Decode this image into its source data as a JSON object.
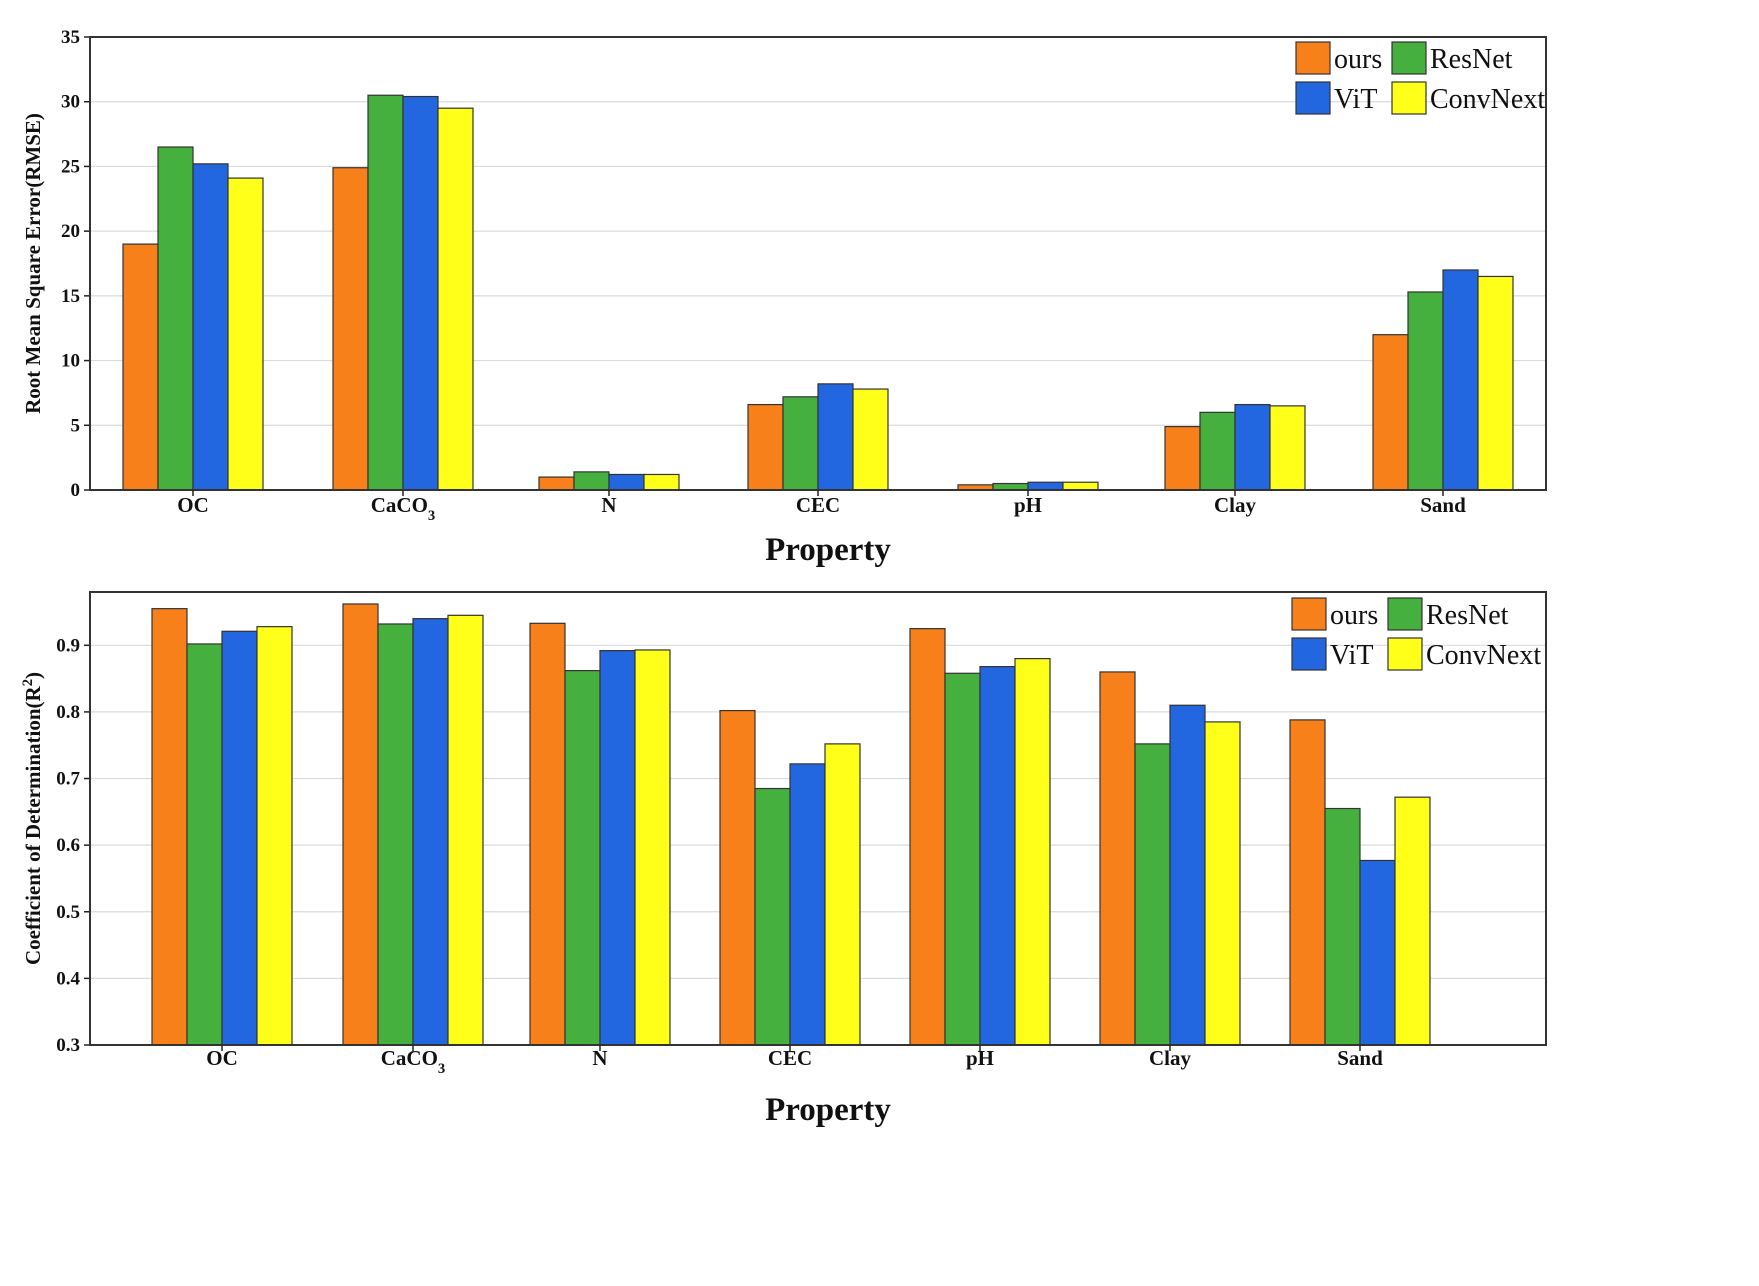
{
  "chart_data": [
    {
      "type": "bar",
      "xlabel": "Property",
      "ylabel": "Root Mean Square Error(RMSE)",
      "categories": [
        "OC",
        "CaCO3",
        "N",
        "CEC",
        "pH",
        "Clay",
        "Sand"
      ],
      "yticks": [
        "0",
        "5",
        "10",
        "15",
        "20",
        "25",
        "30",
        "35"
      ],
      "ylim": [
        0,
        35
      ],
      "grid": true,
      "legend_position": "top-right",
      "series": [
        {
          "name": "ours",
          "color": "#F8801A",
          "values": [
            19.0,
            24.9,
            1.0,
            6.6,
            0.4,
            4.9,
            12.0
          ]
        },
        {
          "name": "ResNet",
          "color": "#46B03F",
          "values": [
            26.5,
            30.5,
            1.4,
            7.2,
            0.5,
            6.0,
            15.3
          ]
        },
        {
          "name": "ViT",
          "color": "#2266E0",
          "values": [
            25.2,
            30.4,
            1.2,
            8.2,
            0.6,
            6.6,
            17.0
          ]
        },
        {
          "name": "ConvNext",
          "color": "#FFFF1A",
          "values": [
            24.1,
            29.5,
            1.2,
            7.8,
            0.6,
            6.5,
            16.5
          ]
        }
      ]
    },
    {
      "type": "bar",
      "xlabel": "Property",
      "ylabel": "Coefficient of Determination(R2)",
      "categories": [
        "OC",
        "CaCO3",
        "N",
        "CEC",
        "pH",
        "Clay",
        "Sand"
      ],
      "yticks": [
        "0.3",
        "0.4",
        "0.5",
        "0.6",
        "0.7",
        "0.8",
        "0.9"
      ],
      "ylim": [
        0.3,
        0.98
      ],
      "grid": true,
      "legend_position": "top-right",
      "series": [
        {
          "name": "ours",
          "color": "#F8801A",
          "values": [
            0.955,
            0.962,
            0.933,
            0.802,
            0.925,
            0.86,
            0.788
          ]
        },
        {
          "name": "ResNet",
          "color": "#46B03F",
          "values": [
            0.902,
            0.932,
            0.862,
            0.685,
            0.858,
            0.752,
            0.655
          ]
        },
        {
          "name": "ViT",
          "color": "#2266E0",
          "values": [
            0.921,
            0.94,
            0.892,
            0.722,
            0.868,
            0.81,
            0.577
          ]
        },
        {
          "name": "ConvNext",
          "color": "#FFFF1A",
          "values": [
            0.928,
            0.945,
            0.893,
            0.752,
            0.88,
            0.785,
            0.672
          ]
        }
      ]
    }
  ]
}
